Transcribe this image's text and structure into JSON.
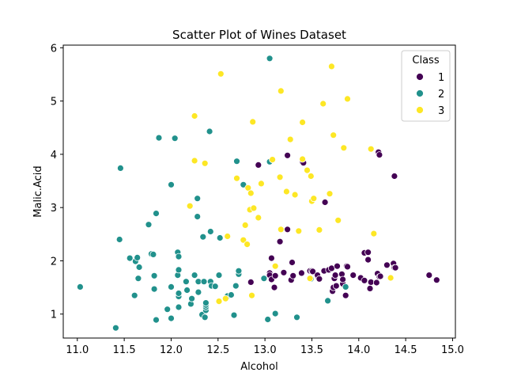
{
  "chart_data": {
    "type": "scatter",
    "title": "Scatter Plot of Wines Dataset",
    "xlabel": "Alcohol",
    "ylabel": "Malic.Acid",
    "xlim": [
      10.85,
      15.03
    ],
    "ylim": [
      0.55,
      6.05
    ],
    "xticks": [
      "11.0",
      "11.5",
      "12.0",
      "12.5",
      "13.0",
      "13.5",
      "14.0",
      "14.5",
      "15.0"
    ],
    "yticks": [
      "1",
      "2",
      "3",
      "4",
      "5",
      "6"
    ],
    "grid": false,
    "legend": {
      "title": "Class",
      "placement": "top-right",
      "entries": [
        "1",
        "2",
        "3"
      ]
    },
    "series": [
      {
        "name": "1",
        "color": "#440154",
        "points": [
          [
            13.05,
            1.77
          ],
          [
            13.05,
            1.73
          ],
          [
            13.07,
            2.05
          ],
          [
            13.07,
            1.65
          ],
          [
            13.1,
            1.5
          ],
          [
            13.11,
            1.72
          ],
          [
            13.16,
            2.36
          ],
          [
            13.2,
            1.78
          ],
          [
            13.24,
            2.59
          ],
          [
            13.24,
            3.98
          ],
          [
            13.28,
            1.64
          ],
          [
            13.29,
            1.97
          ],
          [
            13.3,
            1.72
          ],
          [
            13.39,
            1.77
          ],
          [
            13.4,
            3.85
          ],
          [
            13.41,
            3.84
          ],
          [
            13.48,
            1.81
          ],
          [
            13.5,
            1.81
          ],
          [
            13.51,
            1.8
          ],
          [
            13.56,
            1.71
          ],
          [
            13.56,
            1.73
          ],
          [
            13.58,
            1.66
          ],
          [
            13.63,
            1.81
          ],
          [
            13.64,
            3.1
          ],
          [
            13.68,
            1.83
          ],
          [
            13.71,
            1.86
          ],
          [
            13.72,
            1.43
          ],
          [
            13.73,
            1.5
          ],
          [
            13.74,
            1.67
          ],
          [
            13.75,
            1.73
          ],
          [
            13.76,
            1.53
          ],
          [
            13.77,
            1.9
          ],
          [
            13.82,
            1.75
          ],
          [
            13.83,
            1.57
          ],
          [
            13.83,
            1.65
          ],
          [
            13.86,
            1.35
          ],
          [
            13.86,
            1.51
          ],
          [
            13.87,
            1.9
          ],
          [
            13.88,
            1.89
          ],
          [
            13.94,
            1.73
          ],
          [
            14.02,
            1.68
          ],
          [
            14.06,
            1.63
          ],
          [
            14.06,
            2.15
          ],
          [
            14.1,
            2.16
          ],
          [
            14.1,
            2.02
          ],
          [
            14.12,
            1.48
          ],
          [
            14.13,
            1.6
          ],
          [
            14.19,
            1.59
          ],
          [
            14.2,
            1.76
          ],
          [
            14.21,
            4.04
          ],
          [
            14.22,
            1.7
          ],
          [
            14.22,
            3.99
          ],
          [
            14.23,
            1.71
          ],
          [
            14.3,
            1.92
          ],
          [
            14.37,
            1.95
          ],
          [
            14.38,
            1.87
          ],
          [
            14.38,
            3.59
          ],
          [
            14.39,
            1.87
          ],
          [
            14.75,
            1.73
          ],
          [
            14.83,
            1.64
          ],
          [
            12.85,
            1.6
          ],
          [
            12.93,
            3.8
          ]
        ]
      },
      {
        "name": "2",
        "color": "#21918c",
        "points": [
          [
            11.03,
            1.51
          ],
          [
            11.41,
            0.74
          ],
          [
            11.45,
            2.4
          ],
          [
            11.46,
            3.74
          ],
          [
            11.56,
            2.05
          ],
          [
            11.61,
            1.35
          ],
          [
            11.62,
            1.99
          ],
          [
            11.64,
            2.06
          ],
          [
            11.65,
            1.67
          ],
          [
            11.66,
            1.88
          ],
          [
            11.76,
            2.68
          ],
          [
            11.79,
            2.13
          ],
          [
            11.81,
            2.12
          ],
          [
            11.82,
            1.72
          ],
          [
            11.82,
            1.47
          ],
          [
            11.84,
            0.89
          ],
          [
            11.84,
            2.89
          ],
          [
            11.87,
            4.31
          ],
          [
            11.96,
            1.09
          ],
          [
            12.0,
            0.92
          ],
          [
            12.0,
            1.51
          ],
          [
            12.0,
            3.43
          ],
          [
            12.04,
            4.3
          ],
          [
            12.07,
            2.16
          ],
          [
            12.07,
            1.73
          ],
          [
            12.08,
            1.13
          ],
          [
            12.08,
            1.33
          ],
          [
            12.08,
            1.39
          ],
          [
            12.08,
            2.08
          ],
          [
            12.08,
            1.83
          ],
          [
            12.16,
            1.61
          ],
          [
            12.17,
            1.45
          ],
          [
            12.2,
            3.03
          ],
          [
            12.21,
            1.19
          ],
          [
            12.22,
            1.29
          ],
          [
            12.25,
            1.73
          ],
          [
            12.28,
            2.83
          ],
          [
            12.28,
            3.17
          ],
          [
            12.29,
            1.61
          ],
          [
            12.29,
            1.41
          ],
          [
            12.33,
            0.99
          ],
          [
            12.34,
            2.45
          ],
          [
            12.35,
            1.61
          ],
          [
            12.36,
            0.94
          ],
          [
            12.37,
            1.07
          ],
          [
            12.37,
            1.13
          ],
          [
            12.37,
            1.17
          ],
          [
            12.37,
            1.21
          ],
          [
            12.41,
            4.43
          ],
          [
            12.42,
            2.55
          ],
          [
            12.42,
            1.61
          ],
          [
            12.43,
            1.53
          ],
          [
            12.47,
            1.52
          ],
          [
            12.51,
            1.73
          ],
          [
            12.52,
            2.43
          ],
          [
            12.6,
            1.34
          ],
          [
            12.64,
            1.36
          ],
          [
            12.67,
            0.98
          ],
          [
            12.69,
            1.53
          ],
          [
            12.7,
            3.87
          ],
          [
            12.72,
            1.75
          ],
          [
            12.72,
            1.81
          ],
          [
            12.77,
            3.43
          ],
          [
            13.03,
            0.9
          ],
          [
            13.05,
            3.86
          ],
          [
            13.05,
            5.8
          ],
          [
            13.11,
            1.01
          ],
          [
            13.34,
            0.94
          ],
          [
            13.49,
            1.66
          ],
          [
            13.67,
            1.25
          ],
          [
            13.86,
            1.51
          ],
          [
            12.99,
            1.67
          ]
        ]
      },
      {
        "name": "3",
        "color": "#fde725",
        "points": [
          [
            12.2,
            3.03
          ],
          [
            12.25,
            4.72
          ],
          [
            12.25,
            3.88
          ],
          [
            12.36,
            3.83
          ],
          [
            12.51,
            1.24
          ],
          [
            12.53,
            5.51
          ],
          [
            12.6,
            2.46
          ],
          [
            12.7,
            3.55
          ],
          [
            12.77,
            2.39
          ],
          [
            12.79,
            2.67
          ],
          [
            12.81,
            2.31
          ],
          [
            12.82,
            3.37
          ],
          [
            12.84,
            2.96
          ],
          [
            12.85,
            3.27
          ],
          [
            12.86,
            1.35
          ],
          [
            12.87,
            4.61
          ],
          [
            12.88,
            2.99
          ],
          [
            12.93,
            2.81
          ],
          [
            12.96,
            3.45
          ],
          [
            13.08,
            3.9
          ],
          [
            13.11,
            1.9
          ],
          [
            13.16,
            3.57
          ],
          [
            13.17,
            2.59
          ],
          [
            13.17,
            5.19
          ],
          [
            13.23,
            3.3
          ],
          [
            13.27,
            4.28
          ],
          [
            13.32,
            3.24
          ],
          [
            13.36,
            2.56
          ],
          [
            13.4,
            4.6
          ],
          [
            13.4,
            3.91
          ],
          [
            13.45,
            3.7
          ],
          [
            13.48,
            1.67
          ],
          [
            13.49,
            3.59
          ],
          [
            13.5,
            3.12
          ],
          [
            13.52,
            3.17
          ],
          [
            13.58,
            2.58
          ],
          [
            13.62,
            4.95
          ],
          [
            13.69,
            3.26
          ],
          [
            13.71,
            5.65
          ],
          [
            13.73,
            4.36
          ],
          [
            13.78,
            2.76
          ],
          [
            13.84,
            4.12
          ],
          [
            13.88,
            5.04
          ],
          [
            14.16,
            2.51
          ],
          [
            14.13,
            4.1
          ],
          [
            14.34,
            1.68
          ],
          [
            12.58,
            1.29
          ]
        ]
      }
    ]
  }
}
